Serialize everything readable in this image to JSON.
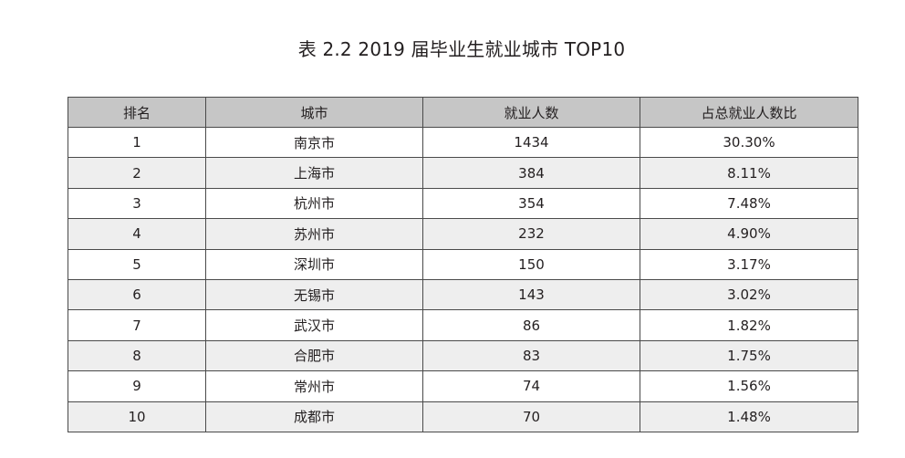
{
  "caption": "表 2.2  2019 届毕业生就业城市 TOP10",
  "chart_data": {
    "type": "table",
    "title": "表 2.2  2019 届毕业生就业城市 TOP10",
    "columns": [
      "排名",
      "城市",
      "就业人数",
      "占总就业人数比"
    ],
    "rows": [
      [
        "1",
        "南京市",
        "1434",
        "30.30%"
      ],
      [
        "2",
        "上海市",
        "384",
        "8.11%"
      ],
      [
        "3",
        "杭州市",
        "354",
        "7.48%"
      ],
      [
        "4",
        "苏州市",
        "232",
        "4.90%"
      ],
      [
        "5",
        "深圳市",
        "150",
        "3.17%"
      ],
      [
        "6",
        "无锡市",
        "143",
        "3.02%"
      ],
      [
        "7",
        "武汉市",
        "86",
        "1.82%"
      ],
      [
        "8",
        "合肥市",
        "83",
        "1.75%"
      ],
      [
        "9",
        "常州市",
        "74",
        "1.56%"
      ],
      [
        "10",
        "成都市",
        "70",
        "1.48%"
      ]
    ]
  }
}
